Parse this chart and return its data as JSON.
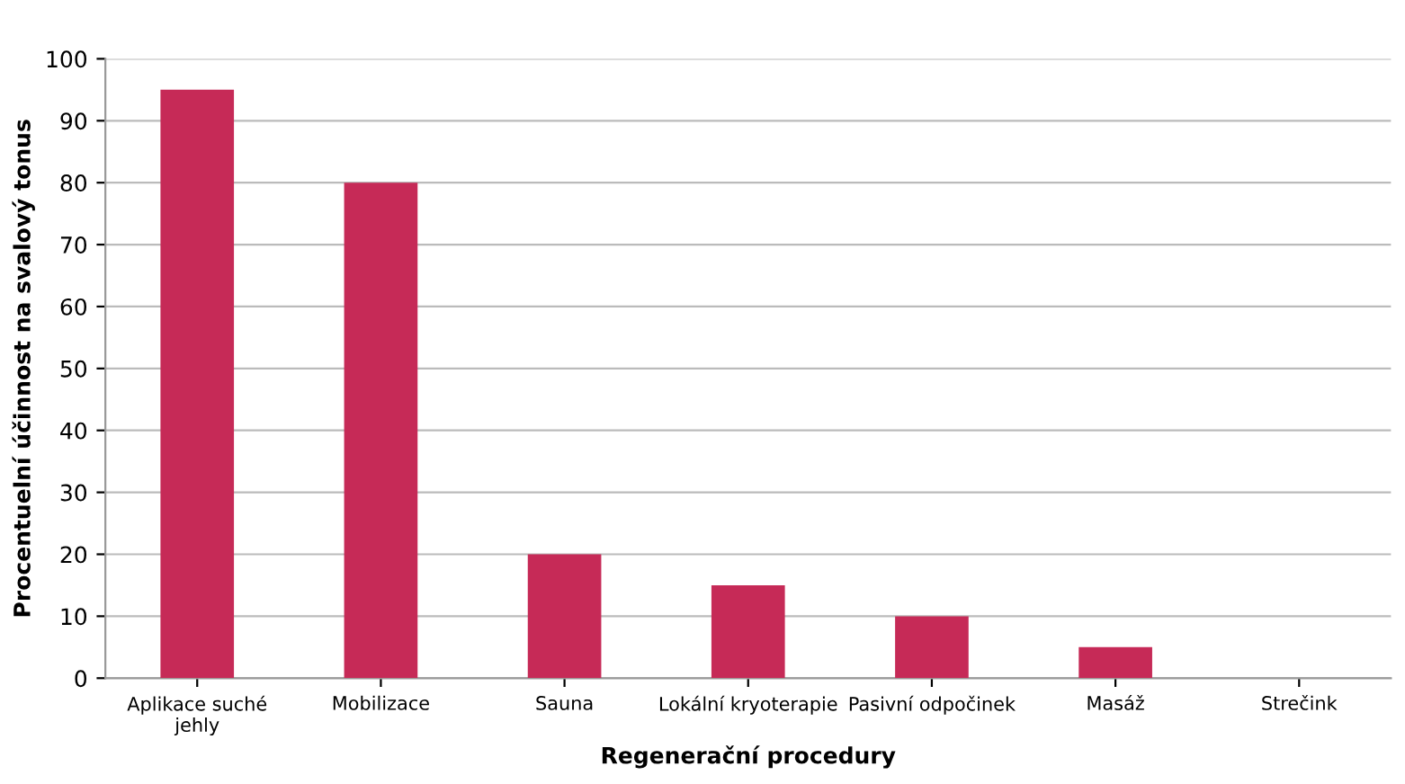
{
  "chart_data": {
    "type": "bar",
    "xlabel": "Regenerační procedury",
    "ylabel": "Procentuelní účinnost na svalový tonus",
    "categories": [
      "Aplikace suché\njehly",
      "Mobilizace",
      "Sauna",
      "Lokální kryoterapie",
      "Pasivní odpočinek",
      "Masáž",
      "Strečink"
    ],
    "values": [
      95,
      80,
      20,
      15,
      10,
      5,
      0
    ],
    "color": "#c62a57",
    "ylim": [
      0,
      100
    ],
    "yticks": [
      0,
      10,
      20,
      30,
      40,
      50,
      60,
      70,
      80,
      90,
      100
    ],
    "grid": "y",
    "legend": false
  }
}
